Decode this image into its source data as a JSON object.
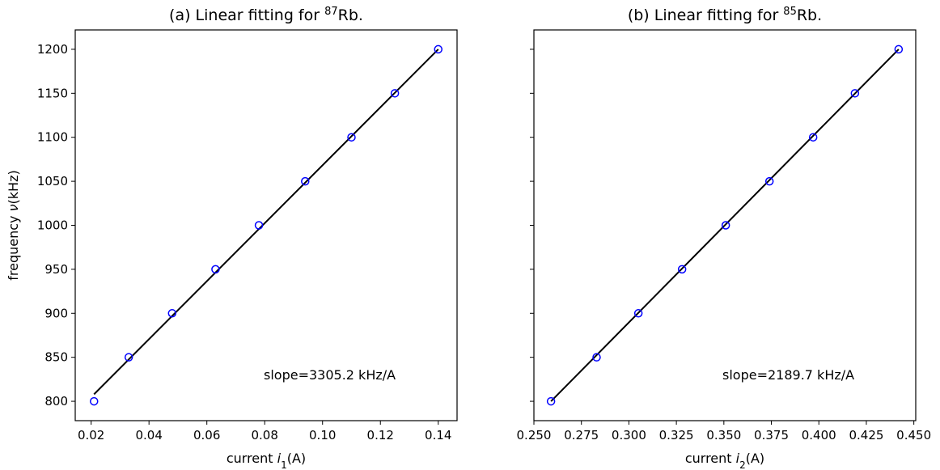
{
  "chart_data": [
    {
      "type": "scatter",
      "title_prefix": "(a) Linear fitting for ",
      "title_sup": "87",
      "title_suffix": "Rb.",
      "xlabel_prefix": "current ",
      "xlabel_var": "i",
      "xlabel_sub": "1",
      "xlabel_suffix": "(A)",
      "ylabel_prefix": "frequency ",
      "ylabel_var": "ν",
      "ylabel_suffix": "(kHz)",
      "annotation": "slope=3305.2 kHz/A",
      "xlim": [
        0.0145,
        0.1465
      ],
      "ylim": [
        778,
        1222
      ],
      "xticks": [
        0.02,
        0.04,
        0.06,
        0.08,
        0.1,
        0.12,
        0.14
      ],
      "xtick_labels": [
        "0.02",
        "0.04",
        "0.06",
        "0.08",
        "0.10",
        "0.12",
        "0.14"
      ],
      "yticks": [
        800,
        850,
        900,
        950,
        1000,
        1050,
        1100,
        1150,
        1200
      ],
      "ytick_labels": [
        "800",
        "850",
        "900",
        "950",
        "1000",
        "1050",
        "1100",
        "1150",
        "1200"
      ],
      "show_ytick_labels": true,
      "x": [
        0.021,
        0.033,
        0.048,
        0.063,
        0.078,
        0.094,
        0.11,
        0.125,
        0.14
      ],
      "y": [
        800,
        850,
        900,
        950,
        1000,
        1050,
        1100,
        1150,
        1200
      ],
      "fit": {
        "x": [
          0.021,
          0.14
        ],
        "y": [
          808,
          1200
        ]
      },
      "marker_color": "#0000ff",
      "line_color": "#000000"
    },
    {
      "type": "scatter",
      "title_prefix": "(b) Linear fitting for ",
      "title_sup": "85",
      "title_suffix": "Rb.",
      "xlabel_prefix": "current ",
      "xlabel_var": "i",
      "xlabel_sub": "2",
      "xlabel_suffix": "(A)",
      "ylabel_prefix": "",
      "ylabel_var": "",
      "ylabel_suffix": "",
      "annotation": "slope=2189.7 kHz/A",
      "xlim": [
        0.25,
        0.451
      ],
      "ylim": [
        778,
        1222
      ],
      "xticks": [
        0.25,
        0.275,
        0.3,
        0.325,
        0.35,
        0.375,
        0.4,
        0.425,
        0.45
      ],
      "xtick_labels": [
        "0.250",
        "0.275",
        "0.300",
        "0.325",
        "0.350",
        "0.375",
        "0.400",
        "0.425",
        "0.450"
      ],
      "yticks": [
        800,
        850,
        900,
        950,
        1000,
        1050,
        1100,
        1150,
        1200
      ],
      "ytick_labels": [],
      "show_ytick_labels": false,
      "x": [
        0.259,
        0.283,
        0.305,
        0.328,
        0.351,
        0.374,
        0.397,
        0.419,
        0.442
      ],
      "y": [
        800,
        850,
        900,
        950,
        1000,
        1050,
        1100,
        1150,
        1200
      ],
      "fit": {
        "x": [
          0.259,
          0.442
        ],
        "y": [
          800,
          1200
        ]
      },
      "marker_color": "#0000ff",
      "line_color": "#000000"
    }
  ]
}
